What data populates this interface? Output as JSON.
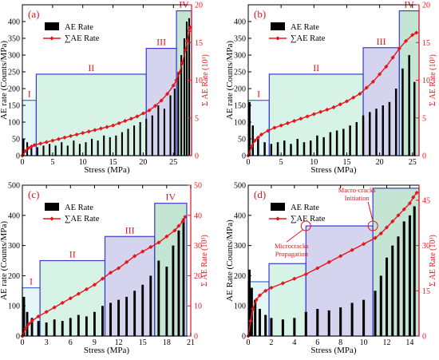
{
  "figure": {
    "colors": {
      "bars": "#000000",
      "cumulative": "#e8141c",
      "right_axis": "#e8141c",
      "stage_I": "#d9f2f2",
      "stage_II": "#c8efdc",
      "stage_III": "#c6c6ea",
      "stage_IV": "#b0dcc6",
      "stage_I_edge": "#3a6cc8",
      "stage_edge": "#3a3ad0"
    },
    "legend": {
      "bar_label": "AE Rate",
      "line_label": "∑AE Rate"
    },
    "stage_labels": [
      "I",
      "II",
      "III",
      "IV"
    ]
  },
  "chart_data": [
    {
      "panel_label": "(a)",
      "type": "bar",
      "xlabel": "Stress (MPa)",
      "ylabel": "AE rate (Counts/MPa)",
      "y2label": "Σ AE Rate (10³)",
      "xlim": [
        0,
        28
      ],
      "ylim": [
        0,
        450
      ],
      "y2lim": [
        0,
        20
      ],
      "xticks": [
        0,
        5,
        10,
        15,
        20,
        25
      ],
      "yticks": [
        0,
        50,
        100,
        150,
        200,
        250,
        300,
        350,
        400
      ],
      "y2ticks": [
        0,
        5,
        10,
        15,
        20
      ],
      "stages": [
        {
          "label": "I",
          "x0": 0,
          "x1": 2.3,
          "y": 165
        },
        {
          "label": "II",
          "x0": 2.3,
          "x1": 20.5,
          "y": 243
        },
        {
          "label": "III",
          "x0": 20.5,
          "x1": 25.5,
          "y": 320
        },
        {
          "label": "IV",
          "x0": 25.5,
          "x1": 28,
          "y": 432
        }
      ],
      "cumulative": {
        "x": [
          0,
          0.5,
          1,
          1.5,
          2,
          3,
          4,
          5,
          6,
          7,
          8,
          9,
          10,
          11,
          12,
          13,
          14,
          15,
          16,
          17,
          18,
          19,
          20,
          21,
          22,
          23,
          24,
          25,
          25.5,
          26,
          26.5,
          27,
          27.3,
          27.6,
          27.8
        ],
        "y": [
          0,
          0.6,
          1.0,
          1.2,
          1.4,
          1.6,
          1.8,
          2.0,
          2.2,
          2.4,
          2.6,
          2.8,
          3.0,
          3.2,
          3.4,
          3.6,
          3.8,
          4.0,
          4.3,
          4.6,
          4.9,
          5.2,
          5.6,
          6.0,
          6.6,
          7.3,
          8.2,
          9.3,
          10.0,
          11.0,
          12.3,
          14.0,
          15.2,
          16.5,
          17.0
        ]
      },
      "ae_rate": {
        "x": [
          0.2,
          0.8,
          1.5,
          2.5,
          3.5,
          4.5,
          5.5,
          6.5,
          7.5,
          8.5,
          9.5,
          10.5,
          11.5,
          12.5,
          13.5,
          14.5,
          15.5,
          16.5,
          17.5,
          18.5,
          19.5,
          20.5,
          21.5,
          22.5,
          23.5,
          24.5,
          25.2,
          25.8,
          26.3,
          26.8,
          27.2,
          27.6
        ],
        "y": [
          50,
          40,
          30,
          25,
          30,
          35,
          30,
          40,
          30,
          45,
          35,
          40,
          50,
          45,
          60,
          55,
          60,
          70,
          80,
          90,
          100,
          110,
          120,
          150,
          140,
          180,
          200,
          250,
          300,
          350,
          400,
          410
        ]
      },
      "legend_position": "top-left"
    },
    {
      "panel_label": "(b)",
      "type": "bar",
      "xlabel": "Stress (MPa)",
      "ylabel": "AE rate (Counts/MPa)",
      "y2label": "Σ AE Rate (10³)",
      "xlim": [
        0,
        26
      ],
      "ylim": [
        0,
        450
      ],
      "y2lim": [
        0,
        20
      ],
      "xticks": [
        0,
        5,
        10,
        15,
        20,
        25
      ],
      "yticks": [
        0,
        50,
        100,
        150,
        200,
        250,
        300,
        350,
        400
      ],
      "y2ticks": [
        0,
        5,
        10,
        15,
        20
      ],
      "stages": [
        {
          "label": "I",
          "x0": 0,
          "x1": 3.2,
          "y": 165
        },
        {
          "label": "II",
          "x0": 3.2,
          "x1": 17.5,
          "y": 243
        },
        {
          "label": "III",
          "x0": 17.5,
          "x1": 23.0,
          "y": 322
        },
        {
          "label": "IV",
          "x0": 23.0,
          "x1": 26,
          "y": 432
        }
      ],
      "cumulative": {
        "x": [
          0,
          0.5,
          1,
          1.5,
          2,
          3,
          4,
          5,
          6,
          7,
          8,
          9,
          10,
          11,
          12,
          13,
          14,
          15,
          16,
          17,
          18,
          19,
          20,
          21,
          22,
          23,
          24,
          25,
          25.6
        ],
        "y": [
          0,
          1.2,
          2.0,
          2.4,
          2.8,
          3.3,
          3.7,
          4.0,
          4.3,
          4.6,
          4.9,
          5.2,
          5.5,
          5.8,
          6.1,
          6.4,
          6.8,
          7.2,
          7.7,
          8.2,
          9.0,
          9.8,
          10.8,
          11.8,
          13.0,
          14.2,
          15.2,
          16.0,
          16.3
        ]
      },
      "ae_rate": {
        "x": [
          0.2,
          0.7,
          1.5,
          2.5,
          3.5,
          4.5,
          5.5,
          6.5,
          7.5,
          8.5,
          9.5,
          10.5,
          11.5,
          12.5,
          13.5,
          14.5,
          15.5,
          16.5,
          17.5,
          18.5,
          19.5,
          20.5,
          21.5,
          22.5,
          23.5,
          24.5,
          25.3
        ],
        "y": [
          160,
          90,
          50,
          40,
          35,
          40,
          45,
          35,
          50,
          40,
          45,
          60,
          55,
          70,
          75,
          80,
          90,
          100,
          120,
          130,
          140,
          150,
          160,
          200,
          260,
          300,
          220
        ]
      },
      "legend_position": "top-left"
    },
    {
      "panel_label": "(c)",
      "type": "bar",
      "xlabel": "Stress (MPa)",
      "ylabel": "AE rate (Counts/MPa)",
      "y2label": "Σ AE Rate (10³)",
      "xlim": [
        0,
        21
      ],
      "ylim": [
        0,
        500
      ],
      "y2lim": [
        0,
        50
      ],
      "xticks": [
        0,
        3,
        6,
        9,
        12,
        15,
        18,
        21
      ],
      "yticks": [
        0,
        100,
        200,
        300,
        400,
        500
      ],
      "y2ticks": [
        0,
        10,
        20,
        30,
        40,
        50
      ],
      "stages": [
        {
          "label": "I",
          "x0": 0,
          "x1": 2.2,
          "y": 160
        },
        {
          "label": "II",
          "x0": 2.2,
          "x1": 10.3,
          "y": 250
        },
        {
          "label": "III",
          "x0": 10.3,
          "x1": 16.5,
          "y": 330
        },
        {
          "label": "IV",
          "x0": 16.5,
          "x1": 20.5,
          "y": 440
        }
      ],
      "cumulative": {
        "x": [
          0,
          0.4,
          0.8,
          1.2,
          2,
          3,
          4,
          5,
          6,
          7,
          8,
          9,
          10,
          11,
          12,
          13,
          14,
          15,
          16,
          17,
          18,
          19,
          19.5,
          20,
          20.3
        ],
        "y": [
          0,
          2.5,
          4.0,
          5.0,
          6.5,
          8.0,
          9.5,
          11.0,
          12.5,
          14.0,
          15.5,
          17.0,
          19.0,
          21.0,
          22.5,
          24.5,
          26.5,
          28.0,
          29.5,
          31.0,
          33.0,
          35.0,
          36.5,
          38.0,
          39.5
        ]
      },
      "ae_rate": {
        "x": [
          0.2,
          0.6,
          1.2,
          2,
          3,
          4,
          5,
          6,
          7,
          8,
          9,
          10,
          11,
          12,
          13,
          14,
          15,
          16,
          17,
          18,
          18.8,
          19.5,
          20.1
        ],
        "y": [
          130,
          80,
          60,
          50,
          45,
          55,
          50,
          60,
          70,
          65,
          80,
          100,
          110,
          120,
          130,
          150,
          170,
          200,
          250,
          230,
          300,
          350,
          390
        ]
      },
      "legend_position": "top-left"
    },
    {
      "panel_label": "(d)",
      "type": "bar",
      "xlabel": "Stress (MPa)",
      "ylabel": "AE Rate (Counts/MPa)",
      "y2label": "Σ AE Rate (10³)",
      "xlim": [
        0,
        14.8
      ],
      "ylim": [
        0,
        500
      ],
      "y2lim": [
        0,
        50
      ],
      "xticks": [
        0,
        2,
        4,
        6,
        8,
        10,
        12,
        14
      ],
      "yticks": [
        0,
        100,
        200,
        300,
        400,
        500
      ],
      "y2ticks": [
        0,
        15,
        30,
        45
      ],
      "stages": [
        {
          "label": "",
          "x0": 0,
          "x1": 1.8,
          "y": 180
        },
        {
          "label": "",
          "x0": 1.8,
          "x1": 5.0,
          "y": 240
        },
        {
          "label": "",
          "x0": 5.0,
          "x1": 10.8,
          "y": 365
        },
        {
          "label": "",
          "x0": 10.8,
          "x1": 14.8,
          "y": 490
        }
      ],
      "annotations": [
        {
          "text": "Microcracks\nPropagation",
          "x": 5.0,
          "y": 365
        },
        {
          "text": "Macro-cracks\nInitiation",
          "x": 10.8,
          "y": 365
        }
      ],
      "cumulative": {
        "x": [
          0,
          0.2,
          0.4,
          0.7,
          1,
          1.5,
          2,
          3,
          4,
          5,
          6,
          7,
          8,
          9,
          10,
          11,
          11.5,
          12,
          12.5,
          13,
          13.5,
          14,
          14.3,
          14.6
        ],
        "y": [
          0,
          5,
          9,
          12,
          13.5,
          15,
          16,
          17.5,
          19,
          20.5,
          22.5,
          24.5,
          26.5,
          28.5,
          30.5,
          32.5,
          34,
          36,
          38,
          40,
          42,
          44,
          46,
          47.5
        ]
      },
      "ae_rate": {
        "x": [
          0.1,
          0.3,
          0.6,
          1,
          1.5,
          2,
          3,
          4,
          5,
          6,
          7,
          8,
          9,
          10,
          11,
          11.5,
          12,
          12.5,
          13,
          13.5,
          14,
          14.4
        ],
        "y": [
          220,
          160,
          120,
          90,
          70,
          60,
          55,
          60,
          80,
          90,
          85,
          95,
          110,
          120,
          150,
          200,
          260,
          300,
          330,
          380,
          400,
          430
        ]
      },
      "legend_position": "top-left"
    }
  ]
}
